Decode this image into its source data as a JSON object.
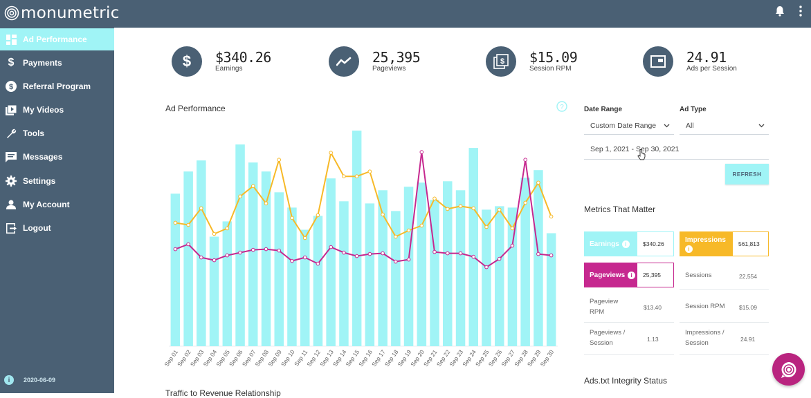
{
  "app": {
    "logo_text": "monumetric"
  },
  "header": {
    "bell_icon": "bell-icon",
    "menu_icon": "kebab-menu-icon"
  },
  "sidebar": {
    "items": [
      {
        "label": "Ad Performance",
        "icon": "dashboard-icon",
        "active": true
      },
      {
        "label": "Payments",
        "icon": "dollar-icon",
        "active": false
      },
      {
        "label": "Referral Program",
        "icon": "dollar-circle-icon",
        "active": false
      },
      {
        "label": "My Videos",
        "icon": "video-icon",
        "active": false
      },
      {
        "label": "Tools",
        "icon": "wrench-icon",
        "active": false
      },
      {
        "label": "Messages",
        "icon": "message-icon",
        "active": false
      },
      {
        "label": "Settings",
        "icon": "gear-icon",
        "active": false
      },
      {
        "label": "My Account",
        "icon": "user-icon",
        "active": false
      },
      {
        "label": "Logout",
        "icon": "logout-icon",
        "active": false
      }
    ],
    "footer": {
      "version_date": "2020-06-09",
      "info_glyph": "i"
    }
  },
  "kpis": [
    {
      "value": "$340.26",
      "label": "Earnings",
      "icon": "dollar-icon"
    },
    {
      "value": "25,395",
      "label": "Pageviews",
      "icon": "trend-icon"
    },
    {
      "value": "$15.09",
      "label": "Session RPM",
      "icon": "money-stack-icon"
    },
    {
      "value": "24.91",
      "label": "Ads per Session",
      "icon": "ad-window-icon"
    }
  ],
  "chart": {
    "title": "Ad Performance",
    "help_glyph": "?"
  },
  "chart_data": {
    "type": "bar",
    "categories": [
      "Sep 01",
      "Sep 02",
      "Sep 03",
      "Sep 04",
      "Sep 05",
      "Sep 06",
      "Sep 07",
      "Sep 08",
      "Sep 09",
      "Sep 10",
      "Sep 11",
      "Sep 12",
      "Sep 13",
      "Sep 14",
      "Sep 15",
      "Sep 16",
      "Sep 17",
      "Sep 18",
      "Sep 19",
      "Sep 20",
      "Sep 21",
      "Sep 22",
      "Sep 23",
      "Sep 24",
      "Sep 25",
      "Sep 26",
      "Sep 27",
      "Sep 28",
      "Sep 29",
      "Sep 30"
    ],
    "series": [
      {
        "kind": "bar",
        "color": "#a0f4f6",
        "values": [
          220,
          252,
          268,
          158,
          180,
          291,
          265,
          252,
          222,
          200,
          168,
          188,
          242,
          209,
          311,
          206,
          225,
          195,
          230,
          236,
          211,
          238,
          225,
          286,
          197,
          202,
          200,
          243,
          254,
          163
        ]
      },
      {
        "kind": "line",
        "color": "#f7b928",
        "values": [
          178,
          175,
          199,
          162,
          170,
          216,
          231,
          206,
          269,
          185,
          156,
          189,
          279,
          245,
          245,
          252,
          190,
          158,
          167,
          174,
          213,
          198,
          202,
          199,
          172,
          197,
          170,
          207,
          236,
          187
        ]
      },
      {
        "kind": "line",
        "color": "#c6288f",
        "values": [
          140,
          147,
          128,
          124,
          131,
          135,
          139,
          140,
          138,
          123,
          128,
          119,
          143,
          135,
          130,
          133,
          134,
          122,
          125,
          280,
          136,
          134,
          134,
          129,
          114,
          126,
          145,
          269,
          133,
          131
        ]
      }
    ],
    "ylim": [
      0,
      320
    ],
    "grid": false,
    "legend": "none"
  },
  "filters": {
    "date_range_label": "Date Range",
    "date_range_value": "Custom Date Range",
    "ad_type_label": "Ad Type",
    "ad_type_value": "All",
    "date_text": "Sep 1, 2021 - Sep 30, 2021",
    "refresh_label": "REFRESH"
  },
  "metrics": {
    "title": "Metrics That Matter",
    "highlighted": [
      {
        "label": "Earnings",
        "value": "$340.26",
        "color": "#a0f4f6"
      },
      {
        "label": "Impressions",
        "value": "561,813",
        "color": "#f7b928"
      },
      {
        "label": "Pageviews",
        "value": "25,395",
        "color": "#c6288f"
      }
    ],
    "plain": [
      {
        "label": "Sessions",
        "value": "22,554"
      },
      {
        "label": "Pageview RPM",
        "value": "$13.40"
      },
      {
        "label": "Session RPM",
        "value": "$15.09"
      },
      {
        "label": "Pageviews / Session",
        "value": "1.13"
      },
      {
        "label": "Impressions / Session",
        "value": "24.91"
      }
    ]
  },
  "ads_txt": {
    "title": "Ads.txt Integrity Status"
  },
  "bottom_section": {
    "title": "Traffic to Revenue Relationship"
  },
  "chat": {
    "icon": "chat-icon"
  }
}
